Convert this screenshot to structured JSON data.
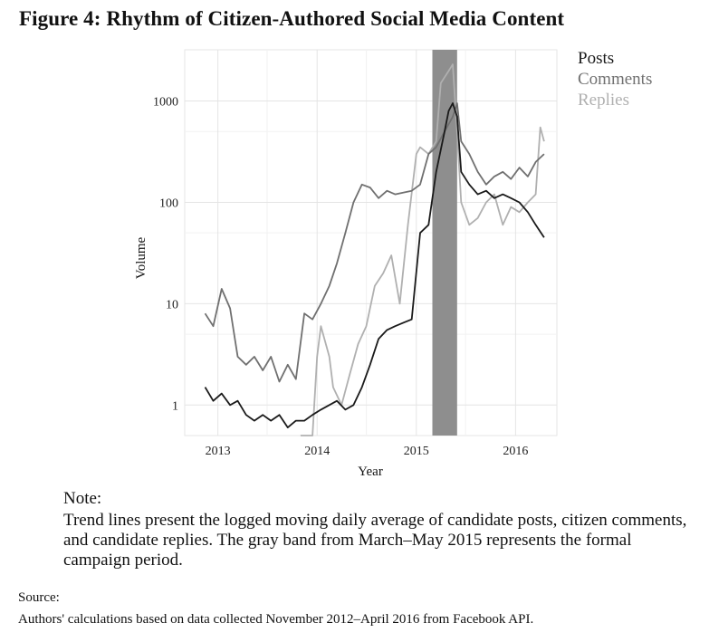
{
  "figure": {
    "title": "Figure 4: Rhythm of Citizen-Authored Social Media Content"
  },
  "note": {
    "label": "Note:",
    "text": "Trend lines present the logged moving daily average of candidate posts, citizen comments, and candidate replies. The gray band from March–May 2015 represents the formal campaign period."
  },
  "source": {
    "label": "Source:",
    "text": "Authors' calculations based on data collected November 2012–April 2016 from Facebook API."
  },
  "chart_data": {
    "type": "line",
    "xlabel": "Year",
    "ylabel": "Volume",
    "x_scale": "time",
    "y_scale": "log",
    "xlim": [
      "2012-09-01",
      "2016-06-01"
    ],
    "ylim": [
      0.5,
      3200
    ],
    "x_ticks": [
      "2013-01-01",
      "2014-01-01",
      "2015-01-01",
      "2016-01-01"
    ],
    "x_tick_labels": [
      "2013",
      "2014",
      "2015",
      "2016"
    ],
    "y_ticks": [
      1,
      10,
      100,
      1000
    ],
    "y_tick_labels": [
      "1",
      "10",
      "100",
      "1000"
    ],
    "grid": true,
    "legend_position": "top-right",
    "shaded_band": {
      "start": "2015-03-01",
      "end": "2015-05-31",
      "color": "#8e8e8e"
    },
    "series": [
      {
        "name": "Posts",
        "color": "#1a1a1a",
        "x": [
          "2012-11-15",
          "2012-12-15",
          "2013-01-15",
          "2013-02-15",
          "2013-03-15",
          "2013-04-15",
          "2013-05-15",
          "2013-06-15",
          "2013-07-15",
          "2013-08-15",
          "2013-09-15",
          "2013-10-15",
          "2013-11-15",
          "2013-12-15",
          "2014-01-15",
          "2014-02-15",
          "2014-03-15",
          "2014-04-15",
          "2014-05-15",
          "2014-06-15",
          "2014-07-15",
          "2014-08-15",
          "2014-09-15",
          "2014-10-15",
          "2014-11-15",
          "2014-12-15",
          "2015-01-15",
          "2015-02-15",
          "2015-03-15",
          "2015-04-15",
          "2015-04-30",
          "2015-05-15",
          "2015-05-31",
          "2015-06-15",
          "2015-07-15",
          "2015-08-15",
          "2015-09-15",
          "2015-10-15",
          "2015-11-15",
          "2015-12-15",
          "2016-01-15",
          "2016-02-15",
          "2016-03-15",
          "2016-04-15"
        ],
        "values": [
          1.5,
          1.1,
          1.3,
          1.0,
          1.1,
          0.8,
          0.7,
          0.8,
          0.7,
          0.8,
          0.6,
          0.7,
          0.7,
          0.8,
          0.9,
          1.0,
          1.1,
          0.9,
          1.0,
          1.5,
          2.5,
          4.5,
          5.5,
          6.0,
          6.5,
          7.0,
          50,
          60,
          200,
          500,
          800,
          950,
          700,
          200,
          150,
          120,
          130,
          110,
          120,
          110,
          100,
          80,
          60,
          45
        ]
      },
      {
        "name": "Comments",
        "color": "#707070",
        "x": [
          "2012-11-15",
          "2012-12-15",
          "2013-01-15",
          "2013-02-15",
          "2013-03-15",
          "2013-04-15",
          "2013-05-15",
          "2013-06-15",
          "2013-07-15",
          "2013-08-15",
          "2013-09-15",
          "2013-10-15",
          "2013-11-15",
          "2013-12-15",
          "2014-01-15",
          "2014-02-15",
          "2014-03-15",
          "2014-04-15",
          "2014-05-15",
          "2014-06-15",
          "2014-07-15",
          "2014-08-15",
          "2014-09-15",
          "2014-10-15",
          "2014-11-15",
          "2014-12-15",
          "2015-01-15",
          "2015-02-15",
          "2015-03-15",
          "2015-04-15",
          "2015-05-15",
          "2015-05-31",
          "2015-06-15",
          "2015-07-15",
          "2015-08-15",
          "2015-09-15",
          "2015-10-15",
          "2015-11-15",
          "2015-12-15",
          "2016-01-15",
          "2016-02-15",
          "2016-03-15",
          "2016-04-15"
        ],
        "values": [
          8,
          6,
          14,
          9,
          3,
          2.5,
          3,
          2.2,
          3,
          1.7,
          2.5,
          1.8,
          8,
          7,
          10,
          15,
          25,
          50,
          100,
          150,
          140,
          110,
          130,
          120,
          125,
          130,
          150,
          300,
          350,
          500,
          700,
          950,
          400,
          300,
          200,
          150,
          180,
          200,
          170,
          220,
          180,
          250,
          300
        ]
      },
      {
        "name": "Replies",
        "color": "#b0b0b0",
        "x": [
          "2013-11-01",
          "2013-12-15",
          "2014-01-01",
          "2014-01-15",
          "2014-02-15",
          "2014-03-01",
          "2014-04-01",
          "2014-05-01",
          "2014-06-01",
          "2014-07-01",
          "2014-08-01",
          "2014-09-01",
          "2014-10-01",
          "2014-11-01",
          "2014-12-01",
          "2015-01-01",
          "2015-01-15",
          "2015-02-15",
          "2015-03-15",
          "2015-04-01",
          "2015-05-01",
          "2015-05-15",
          "2015-05-31",
          "2015-06-15",
          "2015-07-15",
          "2015-08-15",
          "2015-09-15",
          "2015-10-15",
          "2015-11-15",
          "2015-12-15",
          "2016-01-15",
          "2016-02-15",
          "2016-03-15",
          "2016-04-01",
          "2016-04-15"
        ],
        "values": [
          0.5,
          0.5,
          3,
          6,
          3,
          1.5,
          1,
          2,
          4,
          6,
          15,
          20,
          30,
          10,
          60,
          300,
          350,
          300,
          400,
          1500,
          2000,
          2300,
          500,
          100,
          60,
          70,
          100,
          120,
          60,
          90,
          80,
          100,
          120,
          550,
          400
        ]
      }
    ]
  }
}
